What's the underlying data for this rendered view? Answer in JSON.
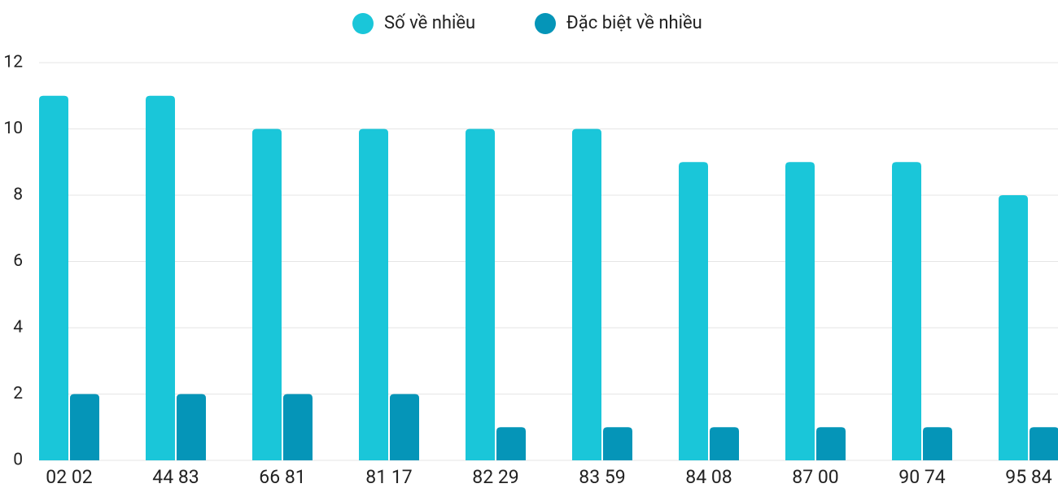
{
  "chart_data": {
    "type": "bar",
    "categories": [
      "02 02",
      "44 83",
      "66 81",
      "81 17",
      "82 29",
      "83 59",
      "84 08",
      "87 00",
      "90 74",
      "95 84"
    ],
    "series": [
      {
        "name": "Số về nhiều",
        "color": "#1ac6d9",
        "values": [
          11,
          11,
          10,
          10,
          10,
          10,
          9,
          9,
          9,
          8
        ]
      },
      {
        "name": "Đặc biệt về nhiều",
        "color": "#0595b8",
        "values": [
          2,
          2,
          2,
          2,
          1,
          1,
          1,
          1,
          1,
          1
        ]
      }
    ],
    "ylim": [
      0,
      12
    ],
    "yticks": [
      0,
      2,
      4,
      6,
      8,
      10,
      12
    ],
    "grid": true,
    "legend": "top"
  }
}
